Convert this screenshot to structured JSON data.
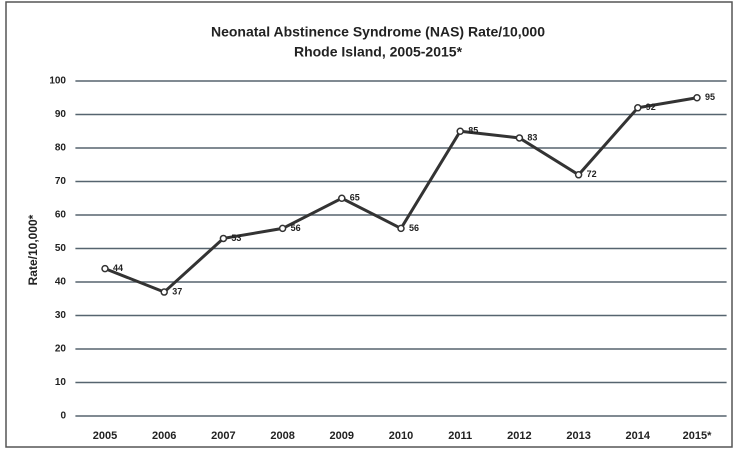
{
  "chart_data": {
    "type": "line",
    "title": "Neonatal Abstinence Syndrome (NAS) Rate/10,000",
    "subtitle": "Rhode Island, 2005-2015*",
    "y_label": "Rate/10,000*",
    "categories": [
      "2005",
      "2006",
      "2007",
      "2008",
      "2009",
      "2010",
      "2011",
      "2012",
      "2013",
      "2014",
      "2015*"
    ],
    "values": [
      44,
      37,
      53,
      56,
      65,
      56,
      85,
      83,
      72,
      92,
      95
    ],
    "color": "#333333",
    "ylim": [
      0,
      100
    ],
    "yticks": [
      0,
      10,
      20,
      30,
      40,
      50,
      60,
      70,
      80,
      90,
      100
    ],
    "grid": true
  }
}
